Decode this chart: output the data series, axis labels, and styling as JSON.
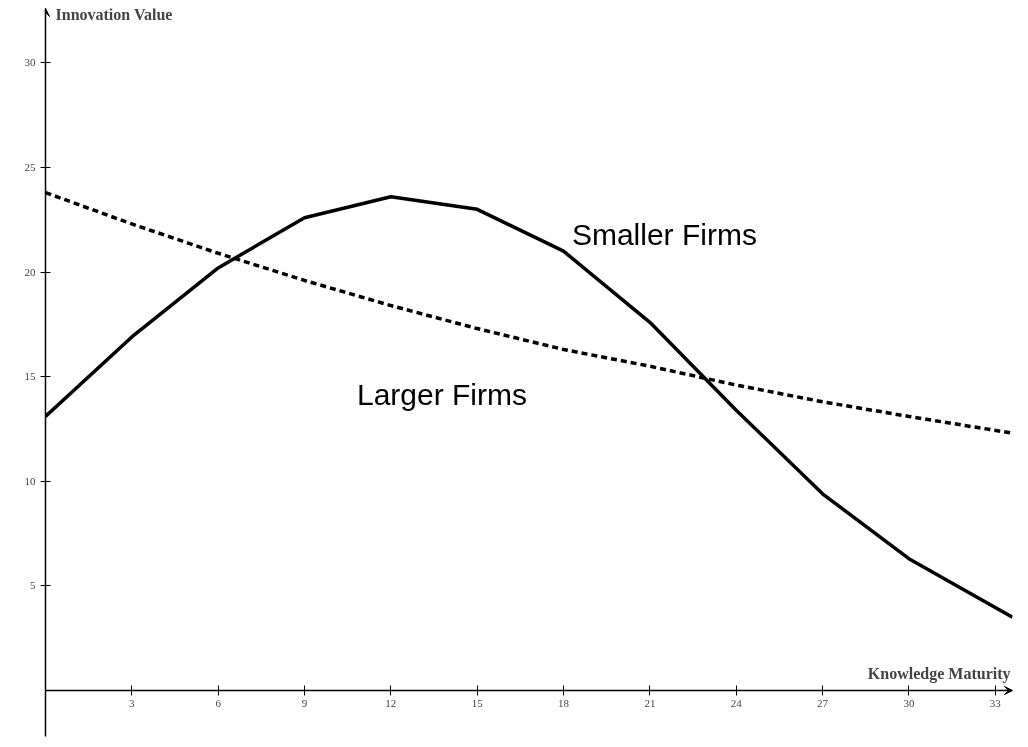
{
  "chart_data": {
    "type": "line",
    "xlabel": "Knowledge Maturity",
    "ylabel": "Innovation Value",
    "xlim": [
      0,
      33.6
    ],
    "ylim": [
      -2.2,
      32.6
    ],
    "xticks": [
      3,
      6,
      9,
      12,
      15,
      18,
      21,
      24,
      27,
      30,
      33
    ],
    "yticks": [
      5,
      10,
      15,
      20,
      25,
      30
    ],
    "grid": false,
    "legend": false,
    "marker": "none",
    "series": [
      {
        "name": "Smaller Firms",
        "color": "#000000",
        "line_style": "solid",
        "x": [
          0,
          3,
          6,
          9,
          12,
          15,
          18,
          21,
          24,
          27,
          30,
          33.6
        ],
        "values": [
          13.1,
          16.9,
          20.2,
          22.6,
          23.6,
          23.0,
          21.0,
          17.6,
          13.4,
          9.4,
          6.3,
          3.5
        ]
      },
      {
        "name": "Larger Firms",
        "color": "#000000",
        "line_style": "dashed",
        "x": [
          0,
          3,
          6,
          9,
          12,
          15,
          18,
          21,
          24,
          27,
          30,
          33.6
        ],
        "values": [
          23.8,
          22.3,
          20.9,
          19.6,
          18.4,
          17.3,
          16.3,
          15.5,
          14.6,
          13.8,
          13.1,
          12.3
        ]
      }
    ]
  }
}
